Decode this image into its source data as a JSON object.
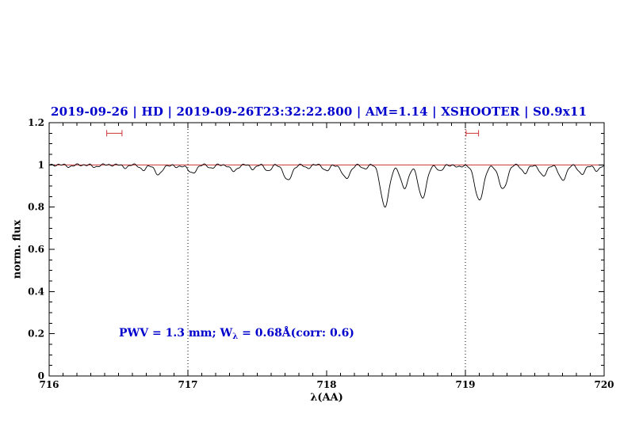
{
  "colors": {
    "title_blue": "#0000cc",
    "annotation_blue": "#0000cc",
    "continuum_red": "#cc3333",
    "spectrum_black": "#000000",
    "marker_red": "#cc3333"
  },
  "chart_data": {
    "type": "line",
    "title": "2019-09-26 | HD | 2019-09-26T23:32:22.800 | AM=1.14 | XSHOOTER | S0.9x11",
    "xlabel": "λ(AA)",
    "ylabel": "norm. flux",
    "xlim": [
      716,
      720
    ],
    "ylim": [
      0,
      1.2
    ],
    "x_ticks": [
      716,
      717,
      718,
      719,
      720
    ],
    "y_ticks": [
      0,
      0.2,
      0.4,
      0.6,
      0.8,
      1,
      1.2
    ],
    "x_minor_step": 0.1,
    "y_minor_step": 0.05,
    "grid": false,
    "legend": "none",
    "continuum_y": 1.0,
    "dotted_vlines": [
      717,
      719
    ],
    "range_markers": [
      {
        "x": 716.47,
        "half_width": 0.055,
        "y": 1.15
      },
      {
        "x": 719.05,
        "half_width": 0.045,
        "y": 1.15
      }
    ],
    "annotation": {
      "text_prefix": "PWV = 1.3 mm; W",
      "subscript": "λ",
      "text_suffix": " = 0.68Å(corr: 0.6)",
      "x": 716.5,
      "y": 0.2
    },
    "series_note": "normalized telluric spectrum: flux = 1 - sum of gaussian absorption lines (center, depth, sigma in AA) + small noise",
    "absorption_lines": [
      {
        "center": 716.15,
        "depth": 0.008,
        "sigma": 0.02
      },
      {
        "center": 716.33,
        "depth": 0.01,
        "sigma": 0.02
      },
      {
        "center": 716.55,
        "depth": 0.012,
        "sigma": 0.02
      },
      {
        "center": 716.68,
        "depth": 0.025,
        "sigma": 0.022
      },
      {
        "center": 716.79,
        "depth": 0.048,
        "sigma": 0.025
      },
      {
        "center": 716.92,
        "depth": 0.012,
        "sigma": 0.02
      },
      {
        "center": 717.03,
        "depth": 0.04,
        "sigma": 0.028
      },
      {
        "center": 717.17,
        "depth": 0.015,
        "sigma": 0.02
      },
      {
        "center": 717.33,
        "depth": 0.03,
        "sigma": 0.025
      },
      {
        "center": 717.47,
        "depth": 0.018,
        "sigma": 0.02
      },
      {
        "center": 717.58,
        "depth": 0.028,
        "sigma": 0.022
      },
      {
        "center": 717.72,
        "depth": 0.075,
        "sigma": 0.028
      },
      {
        "center": 717.86,
        "depth": 0.015,
        "sigma": 0.02
      },
      {
        "center": 718.0,
        "depth": 0.028,
        "sigma": 0.022
      },
      {
        "center": 718.14,
        "depth": 0.065,
        "sigma": 0.028
      },
      {
        "center": 718.27,
        "depth": 0.018,
        "sigma": 0.02
      },
      {
        "center": 718.42,
        "depth": 0.2,
        "sigma": 0.03
      },
      {
        "center": 718.56,
        "depth": 0.11,
        "sigma": 0.028
      },
      {
        "center": 718.69,
        "depth": 0.155,
        "sigma": 0.03
      },
      {
        "center": 718.82,
        "depth": 0.03,
        "sigma": 0.02
      },
      {
        "center": 718.95,
        "depth": 0.012,
        "sigma": 0.02
      },
      {
        "center": 719.1,
        "depth": 0.165,
        "sigma": 0.032
      },
      {
        "center": 719.27,
        "depth": 0.115,
        "sigma": 0.03
      },
      {
        "center": 719.43,
        "depth": 0.04,
        "sigma": 0.022
      },
      {
        "center": 719.56,
        "depth": 0.055,
        "sigma": 0.024
      },
      {
        "center": 719.7,
        "depth": 0.07,
        "sigma": 0.028
      },
      {
        "center": 719.84,
        "depth": 0.045,
        "sigma": 0.024
      },
      {
        "center": 719.95,
        "depth": 0.03,
        "sigma": 0.02
      }
    ],
    "noise": [
      {
        "amp": 0.0035,
        "freq": 137.0,
        "phase": 0.0
      },
      {
        "amp": 0.0025,
        "freq": 61.7,
        "phase": 2.0
      }
    ],
    "sample_step": 0.004
  }
}
